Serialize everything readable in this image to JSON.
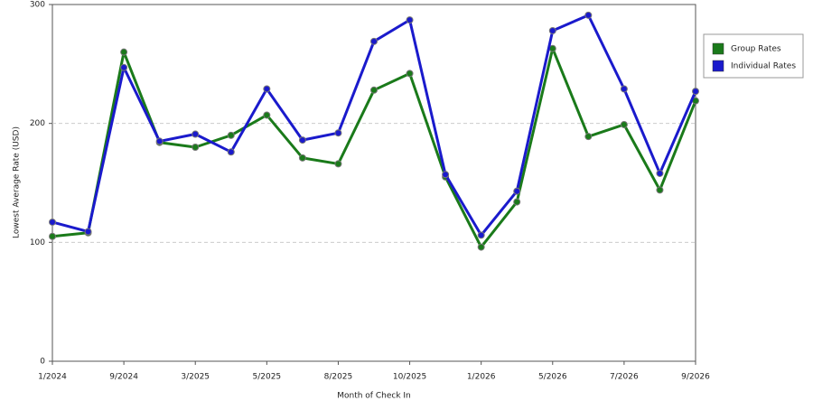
{
  "chart_data": {
    "type": "line",
    "x_label": "Month of Check In",
    "y_label": "Lowest Average Rate (USD)",
    "categories": [
      "1/2024",
      null,
      "9/2024",
      null,
      "3/2025",
      null,
      "5/2025",
      null,
      "8/2025",
      null,
      "10/2025",
      null,
      "1/2026",
      null,
      "5/2026",
      null,
      "7/2026",
      null,
      "9/2026"
    ],
    "series": [
      {
        "name": "Group Rates",
        "color": "#1a7a1a",
        "values": [
          105,
          108,
          260,
          184,
          180,
          190,
          207,
          171,
          166,
          228,
          242,
          155,
          96,
          134,
          263,
          189,
          199,
          144,
          219
        ]
      },
      {
        "name": "Individual Rates",
        "color": "#1a1acc",
        "values": [
          117,
          109,
          247,
          185,
          191,
          176,
          229,
          186,
          192,
          269,
          287,
          157,
          106,
          143,
          278,
          291,
          229,
          158,
          227
        ]
      }
    ],
    "ylim": [
      0,
      300
    ],
    "yticks": [
      0,
      100,
      200,
      300
    ],
    "grid": true,
    "legend": "right"
  }
}
